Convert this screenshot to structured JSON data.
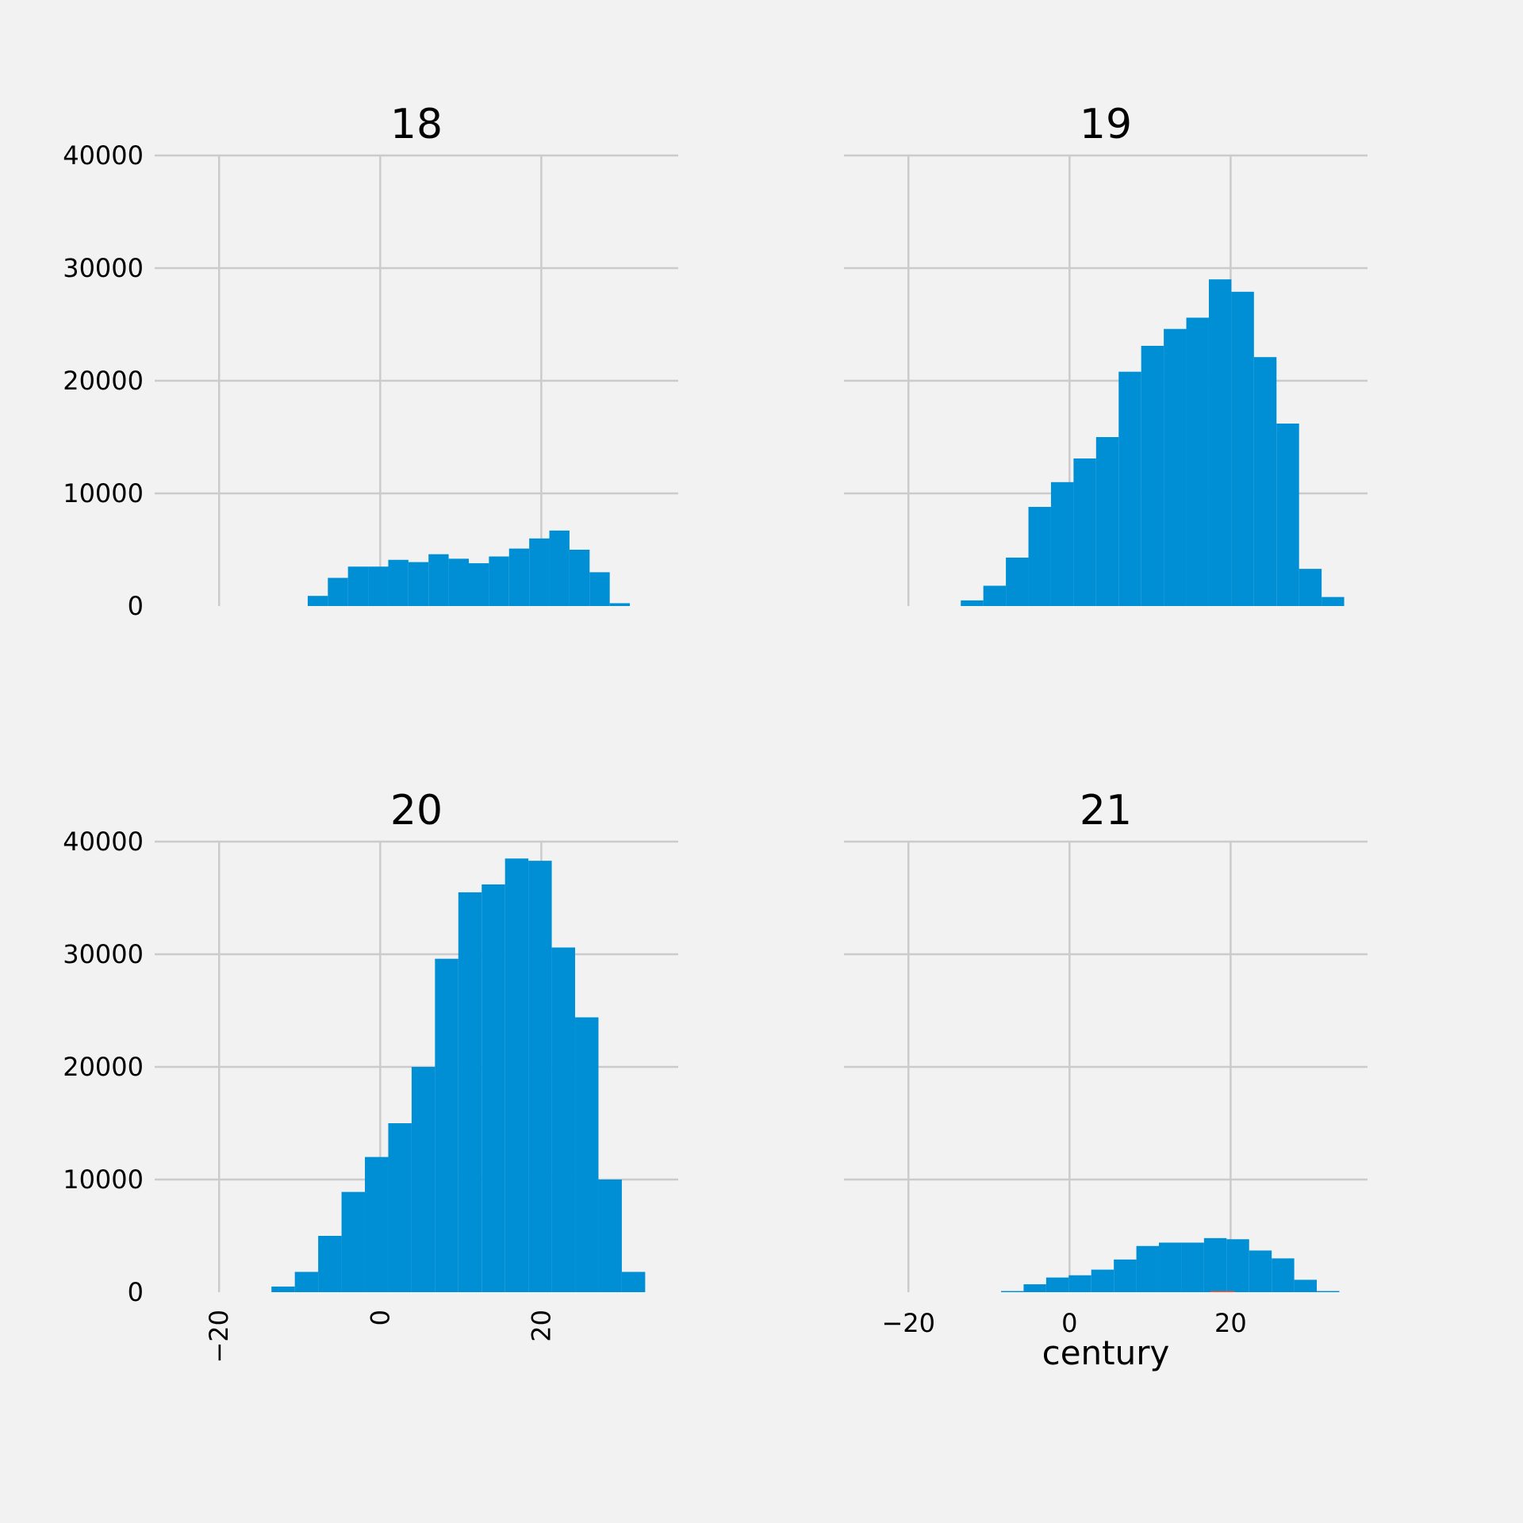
{
  "chart_data": {
    "type": "bar",
    "layout": "2x2 grid of histograms with shared axes",
    "xlabel": "century",
    "ylim": [
      0,
      40000
    ],
    "xlim": [
      -28,
      37
    ],
    "yticks": [
      0,
      10000,
      20000,
      30000,
      40000
    ],
    "xticks": [
      -20,
      0,
      20
    ],
    "grid": true,
    "colors": {
      "bar": "#008fd5",
      "background": "#f2f2f2",
      "grid": "#cbcbcb",
      "minor_bar": "#fc4f30"
    },
    "panels": [
      {
        "title": "18",
        "bins": [
          {
            "x0": -9,
            "x1": -6.5,
            "count": 900
          },
          {
            "x0": -6.5,
            "x1": -4,
            "count": 2500
          },
          {
            "x0": -4,
            "x1": -1.5,
            "count": 3500
          },
          {
            "x0": -1.5,
            "x1": 1,
            "count": 3500
          },
          {
            "x0": 1,
            "x1": 3.5,
            "count": 4100
          },
          {
            "x0": 3.5,
            "x1": 6,
            "count": 3900
          },
          {
            "x0": 6,
            "x1": 8.5,
            "count": 4600
          },
          {
            "x0": 8.5,
            "x1": 11,
            "count": 4200
          },
          {
            "x0": 11,
            "x1": 13.5,
            "count": 3800
          },
          {
            "x0": 13.5,
            "x1": 16,
            "count": 4400
          },
          {
            "x0": 16,
            "x1": 18.5,
            "count": 5100
          },
          {
            "x0": 18.5,
            "x1": 21,
            "count": 6000
          },
          {
            "x0": 21,
            "x1": 23.5,
            "count": 6700
          },
          {
            "x0": 23.5,
            "x1": 26,
            "count": 5000
          },
          {
            "x0": 26,
            "x1": 28.5,
            "count": 3000
          },
          {
            "x0": 28.5,
            "x1": 31,
            "count": 250
          }
        ]
      },
      {
        "title": "19",
        "bins": [
          {
            "x0": -13.5,
            "x1": -10.7,
            "count": 500
          },
          {
            "x0": -10.7,
            "x1": -7.9,
            "count": 1800
          },
          {
            "x0": -7.9,
            "x1": -5.1,
            "count": 4300
          },
          {
            "x0": -5.1,
            "x1": -2.3,
            "count": 8800
          },
          {
            "x0": -2.3,
            "x1": 0.5,
            "count": 11000
          },
          {
            "x0": 0.5,
            "x1": 3.3,
            "count": 13100
          },
          {
            "x0": 3.3,
            "x1": 6.1,
            "count": 15000
          },
          {
            "x0": 6.1,
            "x1": 8.9,
            "count": 20800
          },
          {
            "x0": 8.9,
            "x1": 11.7,
            "count": 23100
          },
          {
            "x0": 11.7,
            "x1": 14.5,
            "count": 24600
          },
          {
            "x0": 14.5,
            "x1": 17.3,
            "count": 25600
          },
          {
            "x0": 17.3,
            "x1": 20.1,
            "count": 29000
          },
          {
            "x0": 20.1,
            "x1": 22.9,
            "count": 27900
          },
          {
            "x0": 22.9,
            "x1": 25.7,
            "count": 22100
          },
          {
            "x0": 25.7,
            "x1": 28.5,
            "count": 16200
          },
          {
            "x0": 28.5,
            "x1": 31.3,
            "count": 3300
          },
          {
            "x0": 31.3,
            "x1": 34.1,
            "count": 800
          }
        ]
      },
      {
        "title": "20",
        "bins": [
          {
            "x0": -13.5,
            "x1": -10.6,
            "count": 500
          },
          {
            "x0": -10.6,
            "x1": -7.7,
            "count": 1800
          },
          {
            "x0": -7.7,
            "x1": -4.8,
            "count": 5000
          },
          {
            "x0": -4.8,
            "x1": -1.9,
            "count": 8900
          },
          {
            "x0": -1.9,
            "x1": 1,
            "count": 12000
          },
          {
            "x0": 1,
            "x1": 3.9,
            "count": 15000
          },
          {
            "x0": 3.9,
            "x1": 6.8,
            "count": 20000
          },
          {
            "x0": 6.8,
            "x1": 9.7,
            "count": 29600
          },
          {
            "x0": 9.7,
            "x1": 12.6,
            "count": 35500
          },
          {
            "x0": 12.6,
            "x1": 15.5,
            "count": 36200
          },
          {
            "x0": 15.5,
            "x1": 18.4,
            "count": 38500
          },
          {
            "x0": 18.4,
            "x1": 21.3,
            "count": 38300
          },
          {
            "x0": 21.3,
            "x1": 24.2,
            "count": 30600
          },
          {
            "x0": 24.2,
            "x1": 27.1,
            "count": 24400
          },
          {
            "x0": 27.1,
            "x1": 30,
            "count": 10000
          },
          {
            "x0": 30,
            "x1": 32.9,
            "count": 1800
          }
        ]
      },
      {
        "title": "21",
        "bins": [
          {
            "x0": -8.5,
            "x1": -5.7,
            "count": 100
          },
          {
            "x0": -5.7,
            "x1": -2.9,
            "count": 700
          },
          {
            "x0": -2.9,
            "x1": -0.1,
            "count": 1300
          },
          {
            "x0": -0.1,
            "x1": 2.7,
            "count": 1500
          },
          {
            "x0": 2.7,
            "x1": 5.5,
            "count": 2000
          },
          {
            "x0": 5.5,
            "x1": 8.3,
            "count": 2900
          },
          {
            "x0": 8.3,
            "x1": 11.1,
            "count": 4100
          },
          {
            "x0": 11.1,
            "x1": 13.9,
            "count": 4400
          },
          {
            "x0": 13.9,
            "x1": 16.7,
            "count": 4400
          },
          {
            "x0": 16.7,
            "x1": 19.5,
            "count": 4800
          },
          {
            "x0": 19.5,
            "x1": 22.3,
            "count": 4700
          },
          {
            "x0": 22.3,
            "x1": 25.1,
            "count": 3700
          },
          {
            "x0": 25.1,
            "x1": 27.9,
            "count": 3000
          },
          {
            "x0": 27.9,
            "x1": 30.7,
            "count": 1100
          },
          {
            "x0": 30.7,
            "x1": 33.5,
            "count": 100
          }
        ],
        "minor_bins": [
          {
            "x0": 17.5,
            "x1": 20.5,
            "count": 100
          }
        ]
      }
    ]
  }
}
